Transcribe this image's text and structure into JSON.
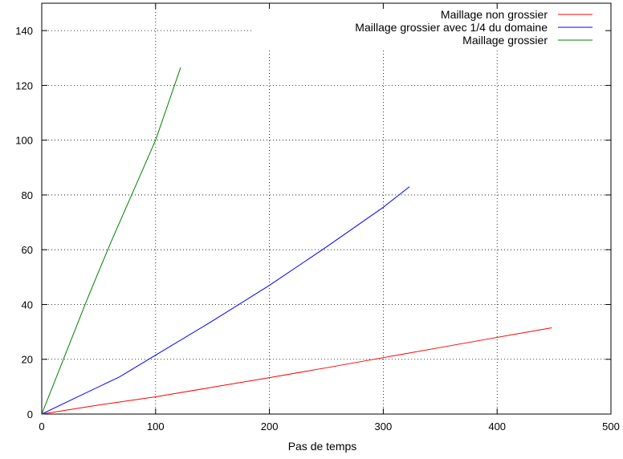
{
  "chart_data": {
    "type": "line",
    "title": "",
    "xlabel": "Pas de temps",
    "ylabel": "",
    "xlim": [
      0,
      500
    ],
    "ylim": [
      0,
      150
    ],
    "x_ticks": [
      0,
      100,
      200,
      300,
      400,
      500
    ],
    "y_ticks": [
      0,
      20,
      40,
      60,
      80,
      100,
      120,
      140
    ],
    "grid": true,
    "grid_style": "dotted",
    "legend_position": "top-right",
    "series": [
      {
        "name": "Maillage non grossier",
        "color": "#ff0000",
        "x": [
          0,
          50,
          100,
          150,
          200,
          250,
          300,
          350,
          400,
          448
        ],
        "y": [
          0,
          3.3,
          6.3,
          9.8,
          13.3,
          16.9,
          20.6,
          24.3,
          28.0,
          31.5
        ]
      },
      {
        "name": "Maillage grossier  avec 1/4 du domaine",
        "color": "#0000ff",
        "x": [
          0,
          30,
          68,
          100,
          150,
          200,
          250,
          300,
          323
        ],
        "y": [
          0,
          6,
          13.5,
          21.5,
          34,
          47,
          61,
          75.5,
          83
        ]
      },
      {
        "name": "Maillage grossier",
        "color": "#008000",
        "x": [
          0,
          20,
          40,
          60,
          80,
          100,
          122
        ],
        "y": [
          0,
          21,
          42,
          62,
          81,
          100,
          126.5
        ]
      }
    ]
  }
}
